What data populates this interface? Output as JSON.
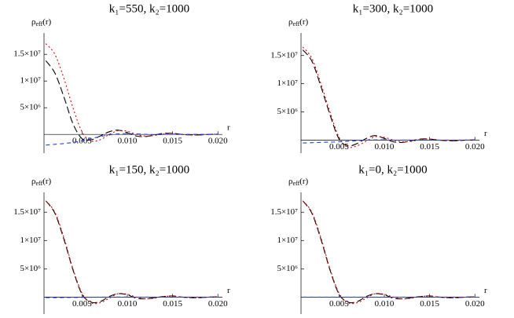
{
  "chart_data": [
    {
      "type": "line",
      "title": "k₁=550, k₂=1000",
      "y_label": "ρ",
      "y_label_sub": "eff",
      "y_label_arg": "(r)",
      "x_label": "r",
      "x": [
        0.001,
        0.002,
        0.003,
        0.004,
        0.005,
        0.006,
        0.007,
        0.008,
        0.009,
        0.01,
        0.011,
        0.012,
        0.013,
        0.014,
        0.015,
        0.016,
        0.017,
        0.018,
        0.019,
        0.02
      ],
      "xlim": [
        0.0008,
        0.0205
      ],
      "ylim": [
        -3500000,
        19000000
      ],
      "xticks": [
        0.005,
        {
          "value": 0.01,
          "label": "0.010"
        },
        0.015,
        {
          "value": 0.02,
          "label": "0.020"
        }
      ],
      "yticks": [
        {
          "value": 5000000,
          "label": "5×10⁶"
        },
        {
          "value": 10000000,
          "label": "1×10⁷"
        },
        {
          "value": 15000000,
          "label": "1.5×10⁷"
        }
      ],
      "series": [
        {
          "color": "#000000",
          "dash": "long",
          "values": [
            13800000,
            11500000,
            7000000,
            2000000,
            -800000,
            -1000000,
            -300000,
            500000,
            800000,
            300000,
            -300000,
            -400000,
            -100000,
            200000,
            200000,
            0,
            -100000,
            -100000,
            0,
            50000
          ]
        },
        {
          "color": "#e00000",
          "dash": "dot",
          "values": [
            17000000,
            15000000,
            10500000,
            5000000,
            500000,
            -1200000,
            -1000000,
            0,
            700000,
            600000,
            0,
            -300000,
            -200000,
            100000,
            200000,
            0,
            -100000,
            -100000,
            0,
            50000
          ]
        },
        {
          "color": "#2040e0",
          "dash": "short",
          "values": [
            -2000000,
            -1850000,
            -1700000,
            -1500000,
            -1200000,
            -800000,
            -400000,
            -100000,
            100000,
            150000,
            100000,
            0,
            -50000,
            0,
            50000,
            0,
            0,
            0,
            0,
            0
          ]
        }
      ]
    },
    {
      "type": "line",
      "title": "k₁=300, k₂=1000",
      "y_label": "ρ",
      "y_label_sub": "eff",
      "y_label_arg": "(r)",
      "x_label": "r",
      "x": [
        0.001,
        0.002,
        0.003,
        0.004,
        0.005,
        0.006,
        0.007,
        0.008,
        0.009,
        0.01,
        0.011,
        0.012,
        0.013,
        0.014,
        0.015,
        0.016,
        0.017,
        0.018,
        0.019,
        0.02
      ],
      "xlim": [
        0.0008,
        0.0205
      ],
      "ylim": [
        -2300000,
        19000000
      ],
      "xticks": [
        0.005,
        {
          "value": 0.01,
          "label": "0.010"
        },
        0.015,
        {
          "value": 0.02,
          "label": "0.020"
        }
      ],
      "yticks": [
        {
          "value": 5000000,
          "label": "5×10⁶"
        },
        {
          "value": 10000000,
          "label": "1×10⁷"
        },
        {
          "value": 15000000,
          "label": "1.5×10⁷"
        }
      ],
      "series": [
        {
          "color": "#000000",
          "dash": "long",
          "values": [
            16000000,
            14000000,
            9500000,
            4500000,
            200000,
            -1000000,
            -600000,
            300000,
            800000,
            300000,
            -300000,
            -400000,
            -100000,
            200000,
            200000,
            0,
            -100000,
            -100000,
            0,
            50000
          ]
        },
        {
          "color": "#e00000",
          "dash": "dot",
          "values": [
            16500000,
            14500000,
            10000000,
            5000000,
            500000,
            -1200000,
            -1000000,
            -200000,
            600000,
            500000,
            0,
            -300000,
            -200000,
            100000,
            200000,
            0,
            -100000,
            -100000,
            0,
            50000
          ]
        },
        {
          "color": "#2040e0",
          "dash": "short",
          "values": [
            -500000,
            -450000,
            -400000,
            -350000,
            -300000,
            -200000,
            -100000,
            0,
            50000,
            50000,
            0,
            0,
            0,
            0,
            0,
            0,
            0,
            0,
            0,
            0
          ]
        }
      ]
    },
    {
      "type": "line",
      "title": "k₁=150, k₂=1000",
      "y_label": "ρ",
      "y_label_sub": "eff",
      "y_label_arg": "(r)",
      "x_label": "r",
      "x": [
        0.001,
        0.002,
        0.003,
        0.004,
        0.005,
        0.006,
        0.007,
        0.008,
        0.009,
        0.01,
        0.011,
        0.012,
        0.013,
        0.014,
        0.015,
        0.016,
        0.017,
        0.018,
        0.019,
        0.02
      ],
      "xlim": [
        0.0008,
        0.0205
      ],
      "ylim": [
        -3000000,
        18500000
      ],
      "xticks": [
        0.005,
        {
          "value": 0.01,
          "label": "0.010"
        },
        0.015,
        {
          "value": 0.02,
          "label": "0.020"
        }
      ],
      "yticks": [
        {
          "value": 5000000,
          "label": "5×10⁶"
        },
        {
          "value": 10000000,
          "label": "1×10⁷"
        },
        {
          "value": 15000000,
          "label": "1.5×10⁷"
        }
      ],
      "series": [
        {
          "color": "#000000",
          "dash": "long",
          "values": [
            17000000,
            14800000,
            10200000,
            4800000,
            500000,
            -900000,
            -800000,
            100000,
            600000,
            400000,
            -200000,
            -300000,
            -100000,
            100000,
            200000,
            0,
            -100000,
            -100000,
            0,
            50000
          ]
        },
        {
          "color": "#e00000",
          "dash": "dot",
          "values": [
            17000000,
            15000000,
            10500000,
            5000000,
            700000,
            -1000000,
            -1000000,
            -200000,
            600000,
            500000,
            0,
            -300000,
            -200000,
            100000,
            200000,
            0,
            -100000,
            -100000,
            0,
            50000
          ]
        },
        {
          "color": "#2040e0",
          "dash": "short",
          "values": [
            -100000,
            -100000,
            -80000,
            -60000,
            -50000,
            -30000,
            -10000,
            0,
            10000,
            10000,
            0,
            0,
            0,
            0,
            0,
            0,
            0,
            0,
            0,
            0
          ]
        }
      ]
    },
    {
      "type": "line",
      "title": "k₁=0, k₂=1000",
      "y_label": "ρ",
      "y_label_sub": "eff",
      "y_label_arg": "(r)",
      "x_label": "r",
      "x": [
        0.001,
        0.002,
        0.003,
        0.004,
        0.005,
        0.006,
        0.007,
        0.008,
        0.009,
        0.01,
        0.011,
        0.012,
        0.013,
        0.014,
        0.015,
        0.016,
        0.017,
        0.018,
        0.019,
        0.02
      ],
      "xlim": [
        0.0008,
        0.0205
      ],
      "ylim": [
        -3000000,
        18500000
      ],
      "xticks": [
        0.005,
        {
          "value": 0.01,
          "label": "0.010"
        },
        0.015,
        {
          "value": 0.02,
          "label": "0.020"
        }
      ],
      "yticks": [
        {
          "value": 5000000,
          "label": "5×10⁶"
        },
        {
          "value": 10000000,
          "label": "1×10⁷"
        },
        {
          "value": 15000000,
          "label": "1.5×10⁷"
        }
      ],
      "series": [
        {
          "color": "#000000",
          "dash": "long",
          "values": [
            17000000,
            14800000,
            10200000,
            4800000,
            500000,
            -900000,
            -800000,
            100000,
            600000,
            400000,
            -200000,
            -300000,
            -100000,
            100000,
            200000,
            0,
            -100000,
            -100000,
            0,
            50000
          ]
        },
        {
          "color": "#e00000",
          "dash": "dot",
          "values": [
            17000000,
            15000000,
            10500000,
            5000000,
            700000,
            -1000000,
            -1000000,
            -200000,
            600000,
            500000,
            0,
            -300000,
            -200000,
            100000,
            200000,
            0,
            -100000,
            -100000,
            0,
            50000
          ]
        },
        {
          "color": "#2040e0",
          "dash": "short",
          "values": [
            0,
            0,
            0,
            0,
            0,
            0,
            0,
            0,
            0,
            0,
            0,
            0,
            0,
            0,
            0,
            0,
            0,
            0,
            0,
            0
          ]
        }
      ]
    }
  ]
}
